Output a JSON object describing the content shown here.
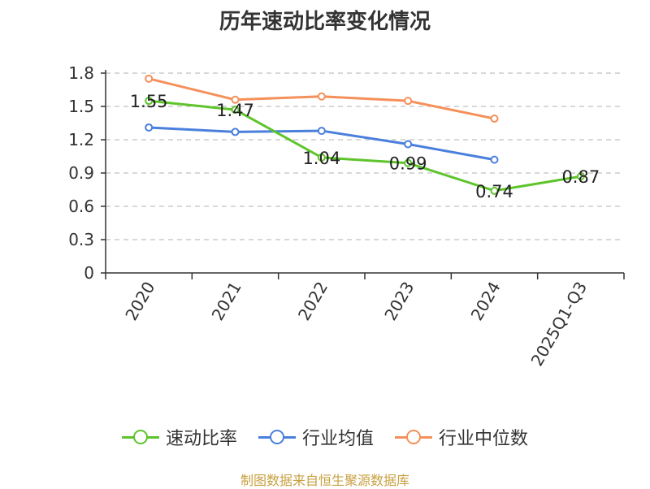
{
  "chart_data": {
    "type": "line",
    "title": "历年速动比率变化情况",
    "categories": [
      "2020",
      "2021",
      "2022",
      "2023",
      "2024",
      "2025Q1-Q3"
    ],
    "ylim": [
      0,
      1.8
    ],
    "yticks": [
      "0",
      "0.3",
      "0.6",
      "0.9",
      "1.2",
      "1.5",
      "1.8"
    ],
    "grid": true,
    "legend_position": "bottom",
    "series": [
      {
        "name": "速动比率",
        "color": "#5ec42b",
        "values": [
          1.55,
          1.47,
          1.04,
          0.99,
          0.74,
          0.87
        ],
        "labels": [
          "1.55",
          "1.47",
          "1.04",
          "0.99",
          "0.74",
          "0.87"
        ]
      },
      {
        "name": "行业均值",
        "color": "#4a7fdc",
        "values": [
          1.31,
          1.27,
          1.28,
          1.16,
          1.02,
          null
        ]
      },
      {
        "name": "行业中位数",
        "color": "#f5905a",
        "values": [
          1.75,
          1.56,
          1.59,
          1.55,
          1.39,
          null
        ]
      }
    ]
  },
  "source": "制图数据来自恒生聚源数据库"
}
